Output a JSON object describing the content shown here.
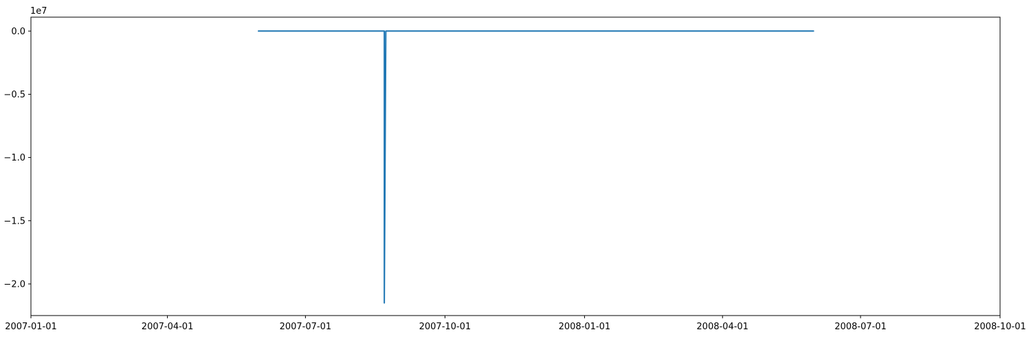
{
  "chart_data": {
    "type": "line",
    "title": "",
    "xlabel": "",
    "ylabel": "",
    "y_offset_label": "1e7",
    "x_scale": "date",
    "xlim": [
      "2007-01-01",
      "2008-10-01"
    ],
    "ylim": [
      -22500000,
      1100000
    ],
    "x_ticks": [
      "2007-01-01",
      "2007-04-01",
      "2007-07-01",
      "2007-10-01",
      "2008-01-01",
      "2008-04-01",
      "2008-07-01",
      "2008-10-01"
    ],
    "y_ticks": [
      0.0,
      -0.5,
      -1.0,
      -1.5,
      -2.0
    ],
    "y_tick_labels": [
      "0.0",
      "−0.5",
      "−1.0",
      "−1.5",
      "−2.0"
    ],
    "grid": false,
    "legend": "none",
    "line_color": "#1f77b4",
    "series": [
      {
        "x": [
          "2007-05-31",
          "2007-08-21",
          "2007-08-22",
          "2007-08-22",
          "2007-08-23",
          "2008-05-31"
        ],
        "y": [
          0,
          0,
          0,
          -21500000,
          0,
          0
        ]
      }
    ]
  }
}
